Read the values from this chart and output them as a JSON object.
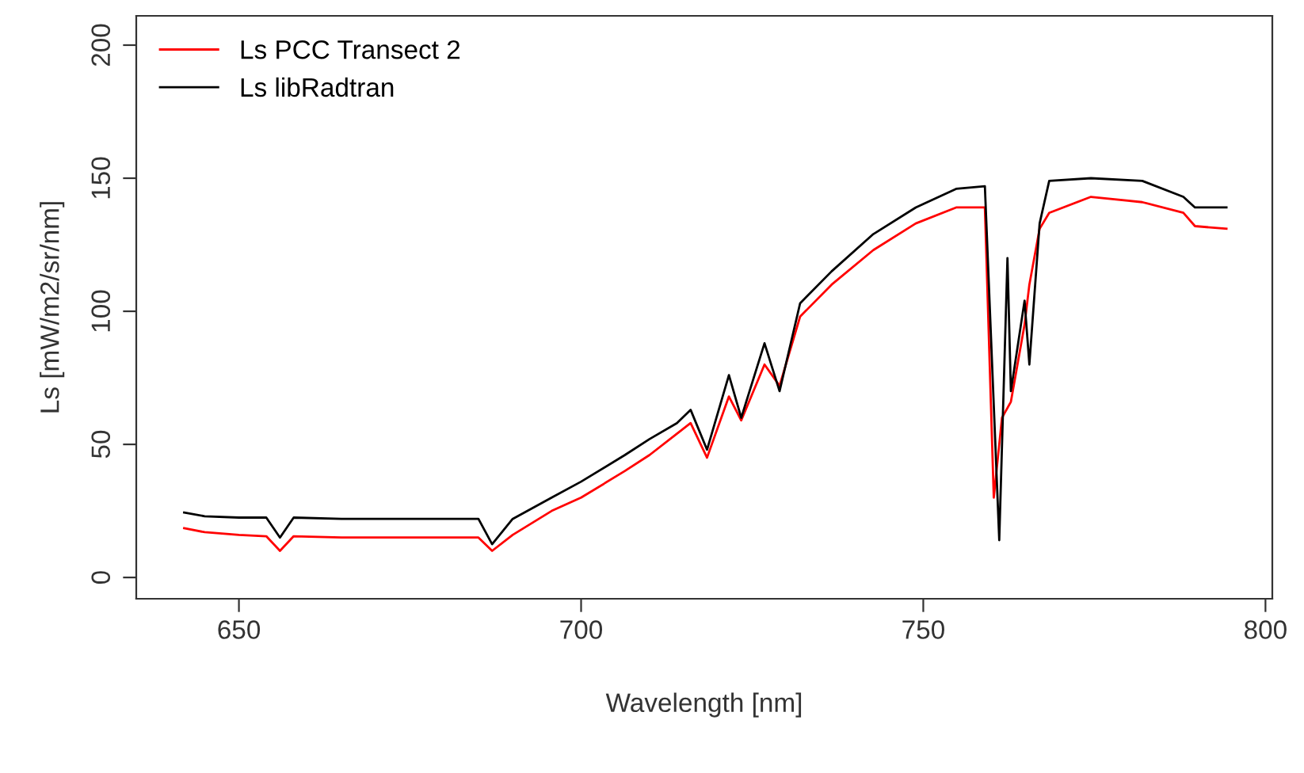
{
  "chart_data": {
    "type": "line",
    "xlabel": "Wavelength [nm]",
    "ylabel": "Ls [mW/m2/sr/nm]",
    "xlim": [
      635,
      801
    ],
    "ylim": [
      -8,
      211
    ],
    "xticks": [
      650,
      700,
      750,
      800
    ],
    "yticks": [
      0,
      50,
      100,
      150,
      200
    ],
    "grid": false,
    "legend": "top left",
    "marker": "none",
    "line_style": "solid",
    "series": [
      {
        "name": "Ls PCC Transect 2",
        "color": "#ff0000",
        "x": [
          642,
          645,
          650,
          654,
          656,
          658,
          665,
          675,
          685,
          687,
          690,
          695.7,
          700,
          706.4,
          710,
          714,
          716,
          718.4,
          721.6,
          723.4,
          726.8,
          729,
          732,
          736.6,
          742.7,
          748.9,
          754.8,
          759,
          760.3,
          761.5,
          762.8,
          764.8,
          765.5,
          767,
          768.4,
          774.5,
          782,
          788,
          789.7,
          794.3
        ],
        "values": [
          18.5,
          17,
          16,
          15.5,
          10,
          15.5,
          15,
          15,
          15,
          10,
          16,
          25,
          30,
          40,
          46,
          54,
          58,
          45,
          68,
          59,
          80,
          72,
          98,
          110,
          123,
          133,
          139,
          139,
          30,
          60,
          66,
          95,
          110,
          131,
          137,
          143,
          141,
          137,
          132,
          131
        ]
      },
      {
        "name": "Ls libRadtran",
        "color": "#000000",
        "x": [
          642,
          645,
          650,
          654,
          656,
          658,
          665,
          675,
          685,
          687,
          690,
          695.7,
          700,
          706.4,
          710,
          714,
          716,
          718.4,
          721.6,
          723.4,
          726.8,
          729,
          732,
          736.6,
          742.7,
          748.9,
          754.8,
          759,
          761.1,
          762.3,
          762.8,
          764.8,
          765.5,
          767,
          768.4,
          774.5,
          782,
          788,
          789.7,
          794.3
        ],
        "values": [
          24.4,
          23,
          22.5,
          22.5,
          15,
          22.5,
          22,
          22,
          22,
          12.5,
          22,
          30,
          36,
          46,
          52,
          58,
          63,
          48,
          76,
          60,
          88,
          70,
          103,
          115,
          129,
          139,
          146,
          147,
          14,
          120,
          70,
          104,
          80,
          133,
          149,
          150,
          149,
          143,
          139,
          139
        ]
      }
    ]
  }
}
